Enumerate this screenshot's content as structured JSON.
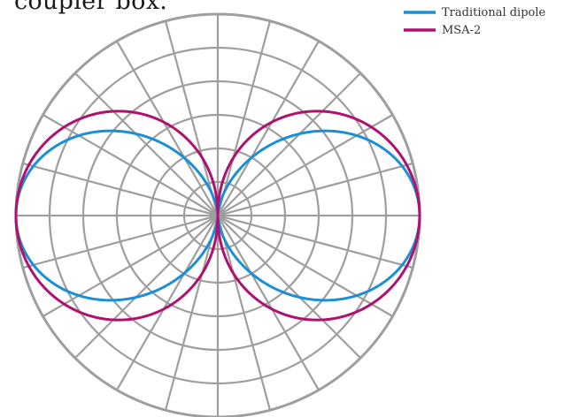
{
  "caption_fragment": "coupler box.",
  "chart_data": {
    "type": "polar-line",
    "title": "",
    "grid": true,
    "radial_rings": 6,
    "angular_step_deg": 15,
    "legend_position": "top-right",
    "series": [
      {
        "name": "Traditional dipole",
        "color": "#1a8fd6",
        "pattern": "figure-eight",
        "max_value": 1.0,
        "shape_exponent": 1.6
      },
      {
        "name": "MSA-2",
        "color": "#b0106e",
        "pattern": "figure-eight",
        "max_value": 1.0,
        "shape_exponent": 0.9
      }
    ]
  }
}
